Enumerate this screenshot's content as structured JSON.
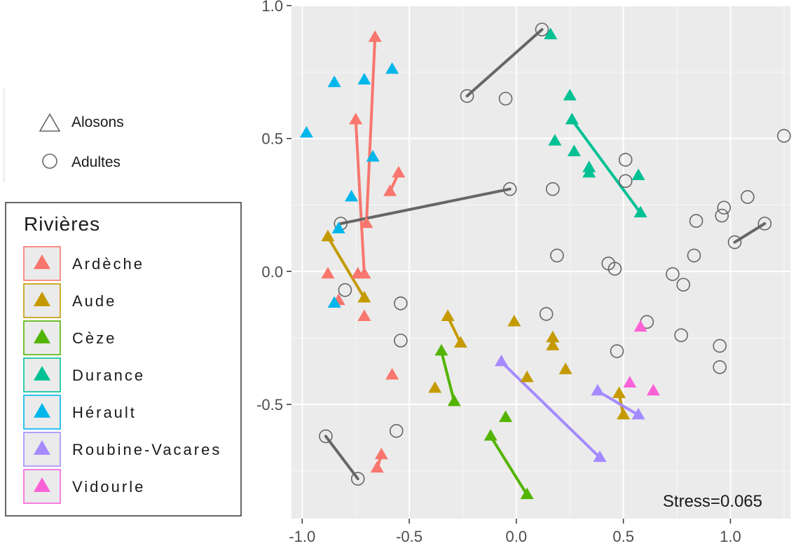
{
  "chart_data": {
    "type": "scatter",
    "xlim": [
      -1.05,
      1.28
    ],
    "ylim": [
      -0.93,
      1.0
    ],
    "x_ticks": [
      -1.0,
      -0.5,
      0.0,
      0.5,
      1.0
    ],
    "y_ticks": [
      -0.5,
      0.0,
      0.5,
      1.0
    ],
    "x_tick_labels": [
      "-1.0",
      "-0.5",
      "0.0",
      "0.5",
      "1.0"
    ],
    "y_tick_labels": [
      "-0.5",
      "0.0",
      "0.5",
      "1.0"
    ],
    "grid": true,
    "panel_background": "#ebebeb",
    "annotation": "Stress=0.065",
    "shape_legend": [
      {
        "label": "Alosons",
        "shape": "triangle"
      },
      {
        "label": "Adultes",
        "shape": "circle"
      }
    ],
    "legend": {
      "title": "Rivières",
      "placement": "left",
      "entries": [
        {
          "label": "Ardèche",
          "color": "#F8766D"
        },
        {
          "label": "Aude",
          "color": "#C49A00"
        },
        {
          "label": "Cèze",
          "color": "#53B400"
        },
        {
          "label": "Durance",
          "color": "#00C094"
        },
        {
          "label": "Hérault",
          "color": "#00B6EB"
        },
        {
          "label": "Roubine-Vacares",
          "color": "#A58AFF"
        },
        {
          "label": "Vidourle",
          "color": "#FB61D7"
        }
      ]
    },
    "adult_color": "#666666",
    "series": [
      {
        "name": "Ardèche",
        "color": "#F8766D",
        "points": [
          [
            -0.66,
            0.88
          ],
          [
            -0.75,
            0.57
          ],
          [
            -0.7,
            0.18
          ],
          [
            -0.55,
            0.37
          ],
          [
            -0.59,
            0.3
          ],
          [
            -0.74,
            -0.01
          ],
          [
            -0.71,
            -0.01
          ],
          [
            -0.88,
            -0.01
          ],
          [
            -0.83,
            -0.11
          ],
          [
            -0.71,
            -0.17
          ],
          [
            -0.58,
            -0.39
          ],
          [
            -0.63,
            -0.69
          ],
          [
            -0.65,
            -0.74
          ]
        ]
      },
      {
        "name": "Aude",
        "color": "#C49A00",
        "points": [
          [
            -0.88,
            0.13
          ],
          [
            -0.71,
            -0.1
          ],
          [
            -0.32,
            -0.17
          ],
          [
            -0.26,
            -0.27
          ],
          [
            -0.01,
            -0.19
          ],
          [
            0.17,
            -0.25
          ],
          [
            0.17,
            -0.28
          ],
          [
            0.05,
            -0.4
          ],
          [
            0.23,
            -0.37
          ],
          [
            -0.38,
            -0.44
          ],
          [
            0.48,
            -0.46
          ],
          [
            0.5,
            -0.54
          ]
        ]
      },
      {
        "name": "Cèze",
        "color": "#53B400",
        "points": [
          [
            -0.35,
            -0.3
          ],
          [
            -0.29,
            -0.49
          ],
          [
            -0.05,
            -0.55
          ],
          [
            -0.12,
            -0.62
          ],
          [
            0.05,
            -0.84
          ]
        ]
      },
      {
        "name": "Durance",
        "color": "#00C094",
        "points": [
          [
            0.16,
            0.89
          ],
          [
            0.25,
            0.66
          ],
          [
            0.26,
            0.57
          ],
          [
            0.18,
            0.49
          ],
          [
            0.27,
            0.45
          ],
          [
            0.34,
            0.39
          ],
          [
            0.34,
            0.37
          ],
          [
            0.57,
            0.36
          ],
          [
            0.58,
            0.22
          ]
        ]
      },
      {
        "name": "Hérault",
        "color": "#00B6EB",
        "points": [
          [
            -0.58,
            0.76
          ],
          [
            -0.71,
            0.72
          ],
          [
            -0.85,
            0.71
          ],
          [
            -0.98,
            0.52
          ],
          [
            -0.67,
            0.43
          ],
          [
            -0.77,
            0.28
          ],
          [
            -0.83,
            0.16
          ],
          [
            -0.85,
            -0.12
          ]
        ]
      },
      {
        "name": "Roubine-Vacares",
        "color": "#A58AFF",
        "points": [
          [
            -0.07,
            -0.34
          ],
          [
            0.39,
            -0.7
          ],
          [
            0.38,
            -0.45
          ],
          [
            0.57,
            -0.54
          ]
        ]
      },
      {
        "name": "Vidourle",
        "color": "#FB61D7",
        "points": [
          [
            0.58,
            -0.21
          ],
          [
            0.53,
            -0.42
          ],
          [
            0.64,
            -0.45
          ]
        ]
      }
    ],
    "adults": [
      [
        0.12,
        0.91
      ],
      [
        -0.23,
        0.66
      ],
      [
        -0.05,
        0.65
      ],
      [
        -0.03,
        0.31
      ],
      [
        0.17,
        0.31
      ],
      [
        -0.82,
        0.18
      ],
      [
        0.51,
        0.42
      ],
      [
        0.51,
        0.34
      ],
      [
        1.25,
        0.51
      ],
      [
        1.08,
        0.28
      ],
      [
        0.97,
        0.24
      ],
      [
        0.96,
        0.21
      ],
      [
        0.84,
        0.19
      ],
      [
        1.16,
        0.18
      ],
      [
        1.02,
        0.11
      ],
      [
        0.19,
        0.06
      ],
      [
        0.83,
        0.06
      ],
      [
        0.43,
        0.03
      ],
      [
        0.46,
        0.01
      ],
      [
        0.73,
        -0.01
      ],
      [
        0.78,
        -0.05
      ],
      [
        -0.8,
        -0.07
      ],
      [
        -0.54,
        -0.12
      ],
      [
        0.14,
        -0.16
      ],
      [
        0.61,
        -0.19
      ],
      [
        0.77,
        -0.24
      ],
      [
        -0.54,
        -0.26
      ],
      [
        0.95,
        -0.28
      ],
      [
        0.47,
        -0.3
      ],
      [
        0.95,
        -0.36
      ],
      [
        -0.56,
        -0.6
      ],
      [
        -0.89,
        -0.62
      ],
      [
        -0.74,
        -0.78
      ]
    ],
    "connections": [
      {
        "color": "#F8766D",
        "from": [
          -0.7,
          0.18
        ],
        "to": [
          -0.66,
          0.88
        ],
        "arrow": true
      },
      {
        "color": "#F8766D",
        "from": [
          -0.71,
          -0.01
        ],
        "to": [
          -0.75,
          0.57
        ],
        "arrow": true
      },
      {
        "color": "#F8766D",
        "from": [
          -0.59,
          0.3
        ],
        "to": [
          -0.55,
          0.37
        ],
        "arrow": true
      },
      {
        "color": "#F8766D",
        "from": [
          -0.65,
          -0.74
        ],
        "to": [
          -0.63,
          -0.69
        ],
        "arrow": true
      },
      {
        "color": "#C49A00",
        "from": [
          -0.88,
          0.13
        ],
        "to": [
          -0.71,
          -0.1
        ],
        "arrow": false
      },
      {
        "color": "#C49A00",
        "from": [
          -0.32,
          -0.17
        ],
        "to": [
          -0.26,
          -0.27
        ],
        "arrow": false
      },
      {
        "color": "#C49A00",
        "from": [
          0.48,
          -0.46
        ],
        "to": [
          0.5,
          -0.54
        ],
        "arrow": false
      },
      {
        "color": "#53B400",
        "from": [
          -0.29,
          -0.49
        ],
        "to": [
          -0.35,
          -0.3
        ],
        "arrow": false
      },
      {
        "color": "#53B400",
        "from": [
          -0.12,
          -0.62
        ],
        "to": [
          0.05,
          -0.84
        ],
        "arrow": false
      },
      {
        "color": "#00C094",
        "from": [
          0.26,
          0.57
        ],
        "to": [
          0.58,
          0.22
        ],
        "arrow": false
      },
      {
        "color": "#A58AFF",
        "from": [
          -0.07,
          -0.34
        ],
        "to": [
          0.39,
          -0.7
        ],
        "arrow": false
      },
      {
        "color": "#A58AFF",
        "from": [
          0.38,
          -0.45
        ],
        "to": [
          0.57,
          -0.54
        ],
        "arrow": false
      },
      {
        "color": "#666666",
        "from": [
          -0.23,
          0.66
        ],
        "to": [
          0.12,
          0.91
        ],
        "arrow": false
      },
      {
        "color": "#666666",
        "from": [
          -0.82,
          0.18
        ],
        "to": [
          -0.03,
          0.31
        ],
        "arrow": false
      },
      {
        "color": "#666666",
        "from": [
          1.02,
          0.11
        ],
        "to": [
          1.16,
          0.18
        ],
        "arrow": false
      },
      {
        "color": "#666666",
        "from": [
          -0.89,
          -0.62
        ],
        "to": [
          -0.74,
          -0.78
        ],
        "arrow": false
      }
    ]
  }
}
